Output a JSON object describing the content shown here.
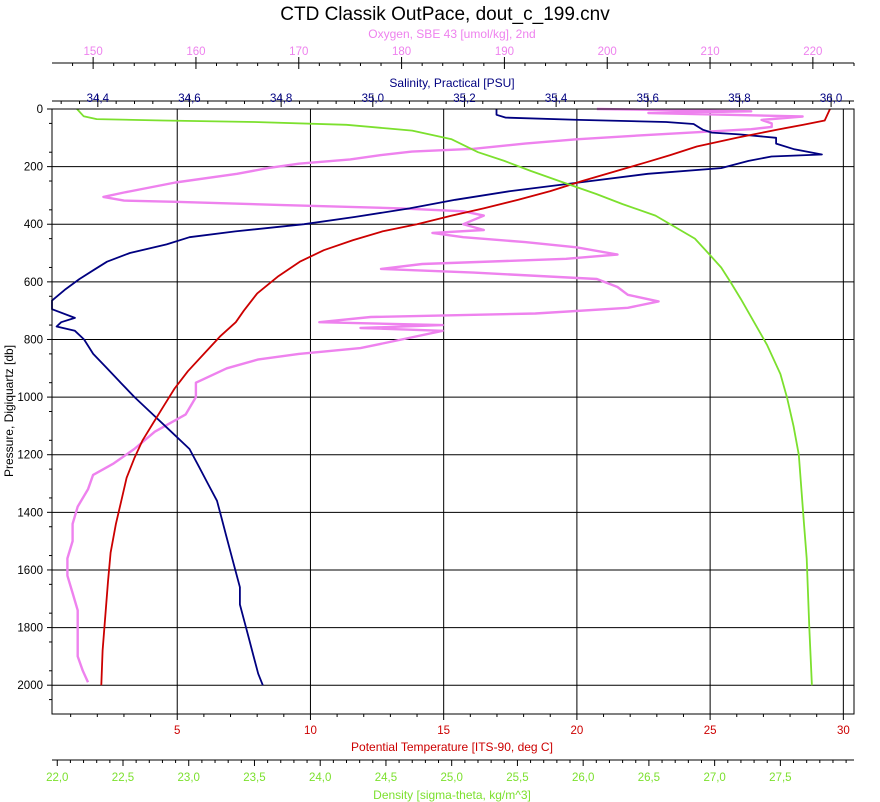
{
  "chart_data": {
    "type": "line",
    "title": "CTD Classik OutPace, dout_c_199.cnv",
    "y_axis": {
      "label": "Pressure, Digiquartz [db]",
      "range": [
        0,
        2100
      ],
      "inverted": true,
      "ticks": [
        "0",
        "200",
        "400",
        "600",
        "800",
        "1000",
        "1200",
        "1400",
        "1600",
        "1800",
        "2000"
      ],
      "grid": true
    },
    "x_axes": [
      {
        "id": "oxygen",
        "label": "Oxygen, SBE 43 [umol/kg], 2nd",
        "position": "top",
        "color": "#ee82ee",
        "range": [
          146,
          224
        ],
        "ticks": [
          "150",
          "160",
          "170",
          "180",
          "190",
          "200",
          "210",
          "220"
        ]
      },
      {
        "id": "salinity",
        "label": "Salinity, Practical [PSU]",
        "position": "top",
        "color": "#000080",
        "range": [
          34.3,
          36.05
        ],
        "ticks": [
          "34,4",
          "34,6",
          "34,8",
          "35,0",
          "35,2",
          "35,4",
          "35,6",
          "35,8",
          "36,0"
        ]
      },
      {
        "id": "temperature",
        "label": "Potential Temperature [ITS-90, deg C]",
        "position": "bottom",
        "color": "#cc0000",
        "range": [
          0.3,
          30.4
        ],
        "ticks": [
          "5",
          "10",
          "15",
          "20",
          "25",
          "30"
        ],
        "grid": true
      },
      {
        "id": "density",
        "label": "Density [sigma-theta, kg/m^3]",
        "position": "bottom",
        "color": "#7ce02e",
        "range": [
          21.96,
          28.06
        ],
        "ticks": [
          "22,0",
          "22,5",
          "23,0",
          "23,5",
          "24,0",
          "24,5",
          "25,0",
          "25,5",
          "26,0",
          "26,5",
          "27,0",
          "27,5"
        ]
      }
    ],
    "series": [
      {
        "axis": "oxygen",
        "color": "#ee82ee",
        "points": [
          [
            199,
            0
          ],
          [
            214,
            8
          ],
          [
            204,
            14
          ],
          [
            219,
            26
          ],
          [
            215,
            38
          ],
          [
            216,
            50
          ],
          [
            216,
            62
          ],
          [
            214,
            70
          ],
          [
            204,
            90
          ],
          [
            197,
            105
          ],
          [
            192,
            120
          ],
          [
            187,
            138
          ],
          [
            181,
            148
          ],
          [
            178,
            160
          ],
          [
            175,
            175
          ],
          [
            170,
            190
          ],
          [
            167,
            205
          ],
          [
            164,
            225
          ],
          [
            158,
            255
          ],
          [
            153,
            290
          ],
          [
            151,
            305
          ],
          [
            153,
            318
          ],
          [
            158,
            322
          ],
          [
            168,
            333
          ],
          [
            180,
            345
          ],
          [
            186,
            355
          ],
          [
            188,
            370
          ],
          [
            186,
            400
          ],
          [
            188,
            420
          ],
          [
            183,
            430
          ],
          [
            186,
            445
          ],
          [
            192,
            462
          ],
          [
            197,
            480
          ],
          [
            201,
            505
          ],
          [
            196,
            520
          ],
          [
            182,
            538
          ],
          [
            178,
            555
          ],
          [
            187,
            568
          ],
          [
            199,
            590
          ],
          [
            201,
            618
          ],
          [
            202,
            645
          ],
          [
            205,
            668
          ],
          [
            202,
            690
          ],
          [
            193,
            710
          ],
          [
            177,
            722
          ],
          [
            172,
            740
          ],
          [
            184,
            750
          ],
          [
            176,
            760
          ],
          [
            184,
            770
          ],
          [
            180,
            800
          ],
          [
            176,
            830
          ],
          [
            170,
            850
          ],
          [
            166,
            870
          ],
          [
            163,
            900
          ],
          [
            160,
            950
          ],
          [
            160,
            1000
          ],
          [
            159,
            1060
          ],
          [
            156,
            1120
          ],
          [
            154,
            1180
          ],
          [
            152,
            1230
          ],
          [
            150,
            1270
          ],
          [
            149.5,
            1320
          ],
          [
            148.5,
            1380
          ],
          [
            148,
            1440
          ],
          [
            148,
            1500
          ],
          [
            147.5,
            1560
          ],
          [
            147.5,
            1620
          ],
          [
            148,
            1680
          ],
          [
            148.5,
            1740
          ],
          [
            148.5,
            1800
          ],
          [
            148.5,
            1860
          ],
          [
            148.5,
            1900
          ],
          [
            149,
            1950
          ],
          [
            149.5,
            1990
          ]
        ]
      },
      {
        "axis": "salinity",
        "color": "#000080",
        "points": [
          [
            35.27,
            0
          ],
          [
            35.27,
            20
          ],
          [
            35.29,
            30
          ],
          [
            35.45,
            38
          ],
          [
            35.64,
            45
          ],
          [
            35.7,
            52
          ],
          [
            35.71,
            62
          ],
          [
            35.72,
            72
          ],
          [
            35.74,
            82
          ],
          [
            35.8,
            88
          ],
          [
            35.88,
            100
          ],
          [
            35.88,
            120
          ],
          [
            35.92,
            140
          ],
          [
            35.98,
            158
          ],
          [
            35.87,
            165
          ],
          [
            35.82,
            180
          ],
          [
            35.76,
            205
          ],
          [
            35.6,
            225
          ],
          [
            35.45,
            255
          ],
          [
            35.3,
            285
          ],
          [
            35.18,
            315
          ],
          [
            35.08,
            345
          ],
          [
            34.96,
            375
          ],
          [
            34.85,
            400
          ],
          [
            34.7,
            425
          ],
          [
            34.6,
            445
          ],
          [
            34.55,
            470
          ],
          [
            34.47,
            500
          ],
          [
            34.42,
            530
          ],
          [
            34.39,
            560
          ],
          [
            34.36,
            590
          ],
          [
            34.33,
            625
          ],
          [
            34.3,
            665
          ],
          [
            34.3,
            695
          ],
          [
            34.35,
            725
          ],
          [
            34.32,
            740
          ],
          [
            34.31,
            755
          ],
          [
            34.35,
            770
          ],
          [
            34.37,
            800
          ],
          [
            34.39,
            850
          ],
          [
            34.42,
            900
          ],
          [
            34.45,
            950
          ],
          [
            34.48,
            1000
          ],
          [
            34.52,
            1060
          ],
          [
            34.56,
            1120
          ],
          [
            34.6,
            1180
          ],
          [
            34.62,
            1240
          ],
          [
            34.64,
            1300
          ],
          [
            34.66,
            1360
          ],
          [
            34.67,
            1420
          ],
          [
            34.68,
            1480
          ],
          [
            34.69,
            1540
          ],
          [
            34.7,
            1600
          ],
          [
            34.71,
            1660
          ],
          [
            34.71,
            1720
          ],
          [
            34.72,
            1780
          ],
          [
            34.73,
            1840
          ],
          [
            34.74,
            1900
          ],
          [
            34.75,
            1960
          ],
          [
            34.76,
            2000
          ]
        ]
      },
      {
        "axis": "temperature",
        "color": "#cc0000",
        "points": [
          [
            29.5,
            0
          ],
          [
            29.3,
            40
          ],
          [
            28.5,
            55
          ],
          [
            27.6,
            70
          ],
          [
            26.0,
            100
          ],
          [
            24.5,
            130
          ],
          [
            23.5,
            160
          ],
          [
            22.6,
            185
          ],
          [
            21.5,
            215
          ],
          [
            20.2,
            250
          ],
          [
            19.0,
            285
          ],
          [
            17.8,
            315
          ],
          [
            16.5,
            345
          ],
          [
            15.3,
            370
          ],
          [
            14.0,
            400
          ],
          [
            12.7,
            425
          ],
          [
            11.6,
            455
          ],
          [
            10.5,
            490
          ],
          [
            9.6,
            530
          ],
          [
            8.8,
            580
          ],
          [
            8.0,
            640
          ],
          [
            7.5,
            700
          ],
          [
            7.2,
            740
          ],
          [
            6.6,
            790
          ],
          [
            6.0,
            850
          ],
          [
            5.4,
            910
          ],
          [
            4.9,
            970
          ],
          [
            4.5,
            1030
          ],
          [
            4.1,
            1090
          ],
          [
            3.7,
            1150
          ],
          [
            3.4,
            1210
          ],
          [
            3.1,
            1280
          ],
          [
            2.9,
            1360
          ],
          [
            2.7,
            1440
          ],
          [
            2.5,
            1540
          ],
          [
            2.4,
            1640
          ],
          [
            2.3,
            1760
          ],
          [
            2.2,
            1880
          ],
          [
            2.15,
            2000
          ]
        ]
      },
      {
        "axis": "density",
        "color": "#7ce02e",
        "points": [
          [
            22.15,
            0
          ],
          [
            22.2,
            25
          ],
          [
            22.3,
            35
          ],
          [
            22.8,
            40
          ],
          [
            23.5,
            45
          ],
          [
            24.2,
            55
          ],
          [
            24.7,
            75
          ],
          [
            25.0,
            105
          ],
          [
            25.2,
            150
          ],
          [
            25.4,
            180
          ],
          [
            25.6,
            215
          ],
          [
            25.85,
            255
          ],
          [
            26.1,
            295
          ],
          [
            26.3,
            330
          ],
          [
            26.55,
            370
          ],
          [
            26.7,
            410
          ],
          [
            26.85,
            450
          ],
          [
            26.95,
            500
          ],
          [
            27.05,
            550
          ],
          [
            27.12,
            600
          ],
          [
            27.2,
            660
          ],
          [
            27.3,
            740
          ],
          [
            27.4,
            820
          ],
          [
            27.5,
            920
          ],
          [
            27.55,
            1000
          ],
          [
            27.6,
            1100
          ],
          [
            27.64,
            1200
          ],
          [
            27.66,
            1320
          ],
          [
            27.68,
            1440
          ],
          [
            27.7,
            1560
          ],
          [
            27.71,
            1680
          ],
          [
            27.72,
            1800
          ],
          [
            27.73,
            1900
          ],
          [
            27.74,
            2000
          ]
        ]
      }
    ]
  }
}
